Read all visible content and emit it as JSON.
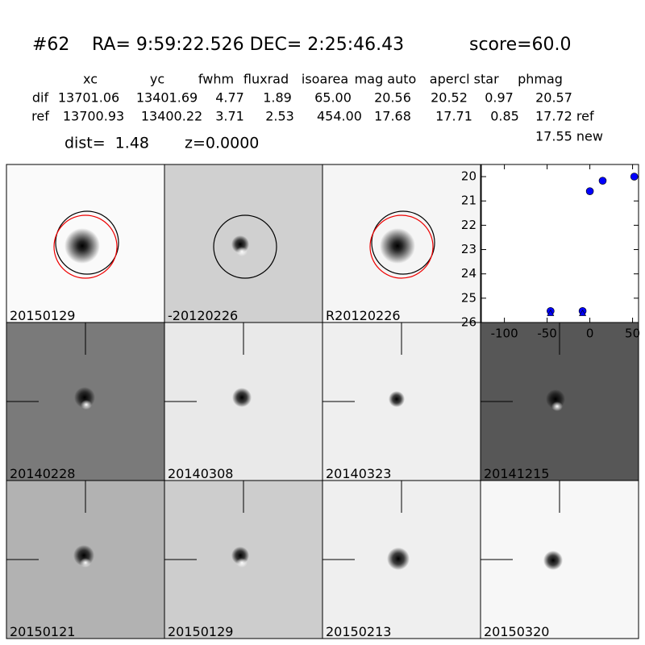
{
  "header": {
    "id": "#62",
    "coords": "RA= 9:59:22.526 DEC= 2:25:46.43",
    "score": "score=60.0"
  },
  "table": {
    "columns": [
      "xc",
      "yc",
      "fwhm",
      "fluxrad",
      "isoarea",
      "mag auto",
      "aper",
      "cl star",
      "phmag"
    ],
    "rows": [
      [
        "dif",
        "13701.06",
        "13401.69",
        "4.77",
        "1.89",
        "65.00",
        "20.56",
        "20.52",
        "0.97",
        "20.57"
      ],
      [
        "ref",
        "13700.93",
        "13400.22",
        "3.71",
        "2.53",
        "454.00",
        "17.68",
        "17.71",
        "0.85",
        "17.72 ref"
      ]
    ],
    "extra": "17.55 new",
    "dist": "dist=  1.48",
    "z": "z=0.0000"
  },
  "panels": [
    "20150129",
    "-20120226",
    "R20120226",
    "20140228",
    "20140308",
    "20140323",
    "20141215",
    "20150121",
    "20150129",
    "20150213",
    "20150320"
  ],
  "highlight_panel_color": "#ff0000",
  "chart_data": {
    "type": "scatter",
    "series": [
      {
        "color": "#0000ff",
        "marker": "circle",
        "x": [
          -46,
          -8.5,
          0,
          15,
          52
        ],
        "values": [
          25.53,
          25.53,
          20.6,
          20.17,
          20.0
        ]
      },
      {
        "color": "#0000ff",
        "marker": "triangle",
        "x": [
          -46,
          -8.5
        ],
        "values": [
          25.62,
          25.62
        ]
      }
    ],
    "xlim": [
      -127,
      57
    ],
    "xticks": [
      -100,
      -50,
      0,
      50
    ],
    "ylim": [
      26,
      19.5
    ],
    "yticks": [
      20,
      21,
      22,
      23,
      24,
      25,
      26
    ]
  }
}
